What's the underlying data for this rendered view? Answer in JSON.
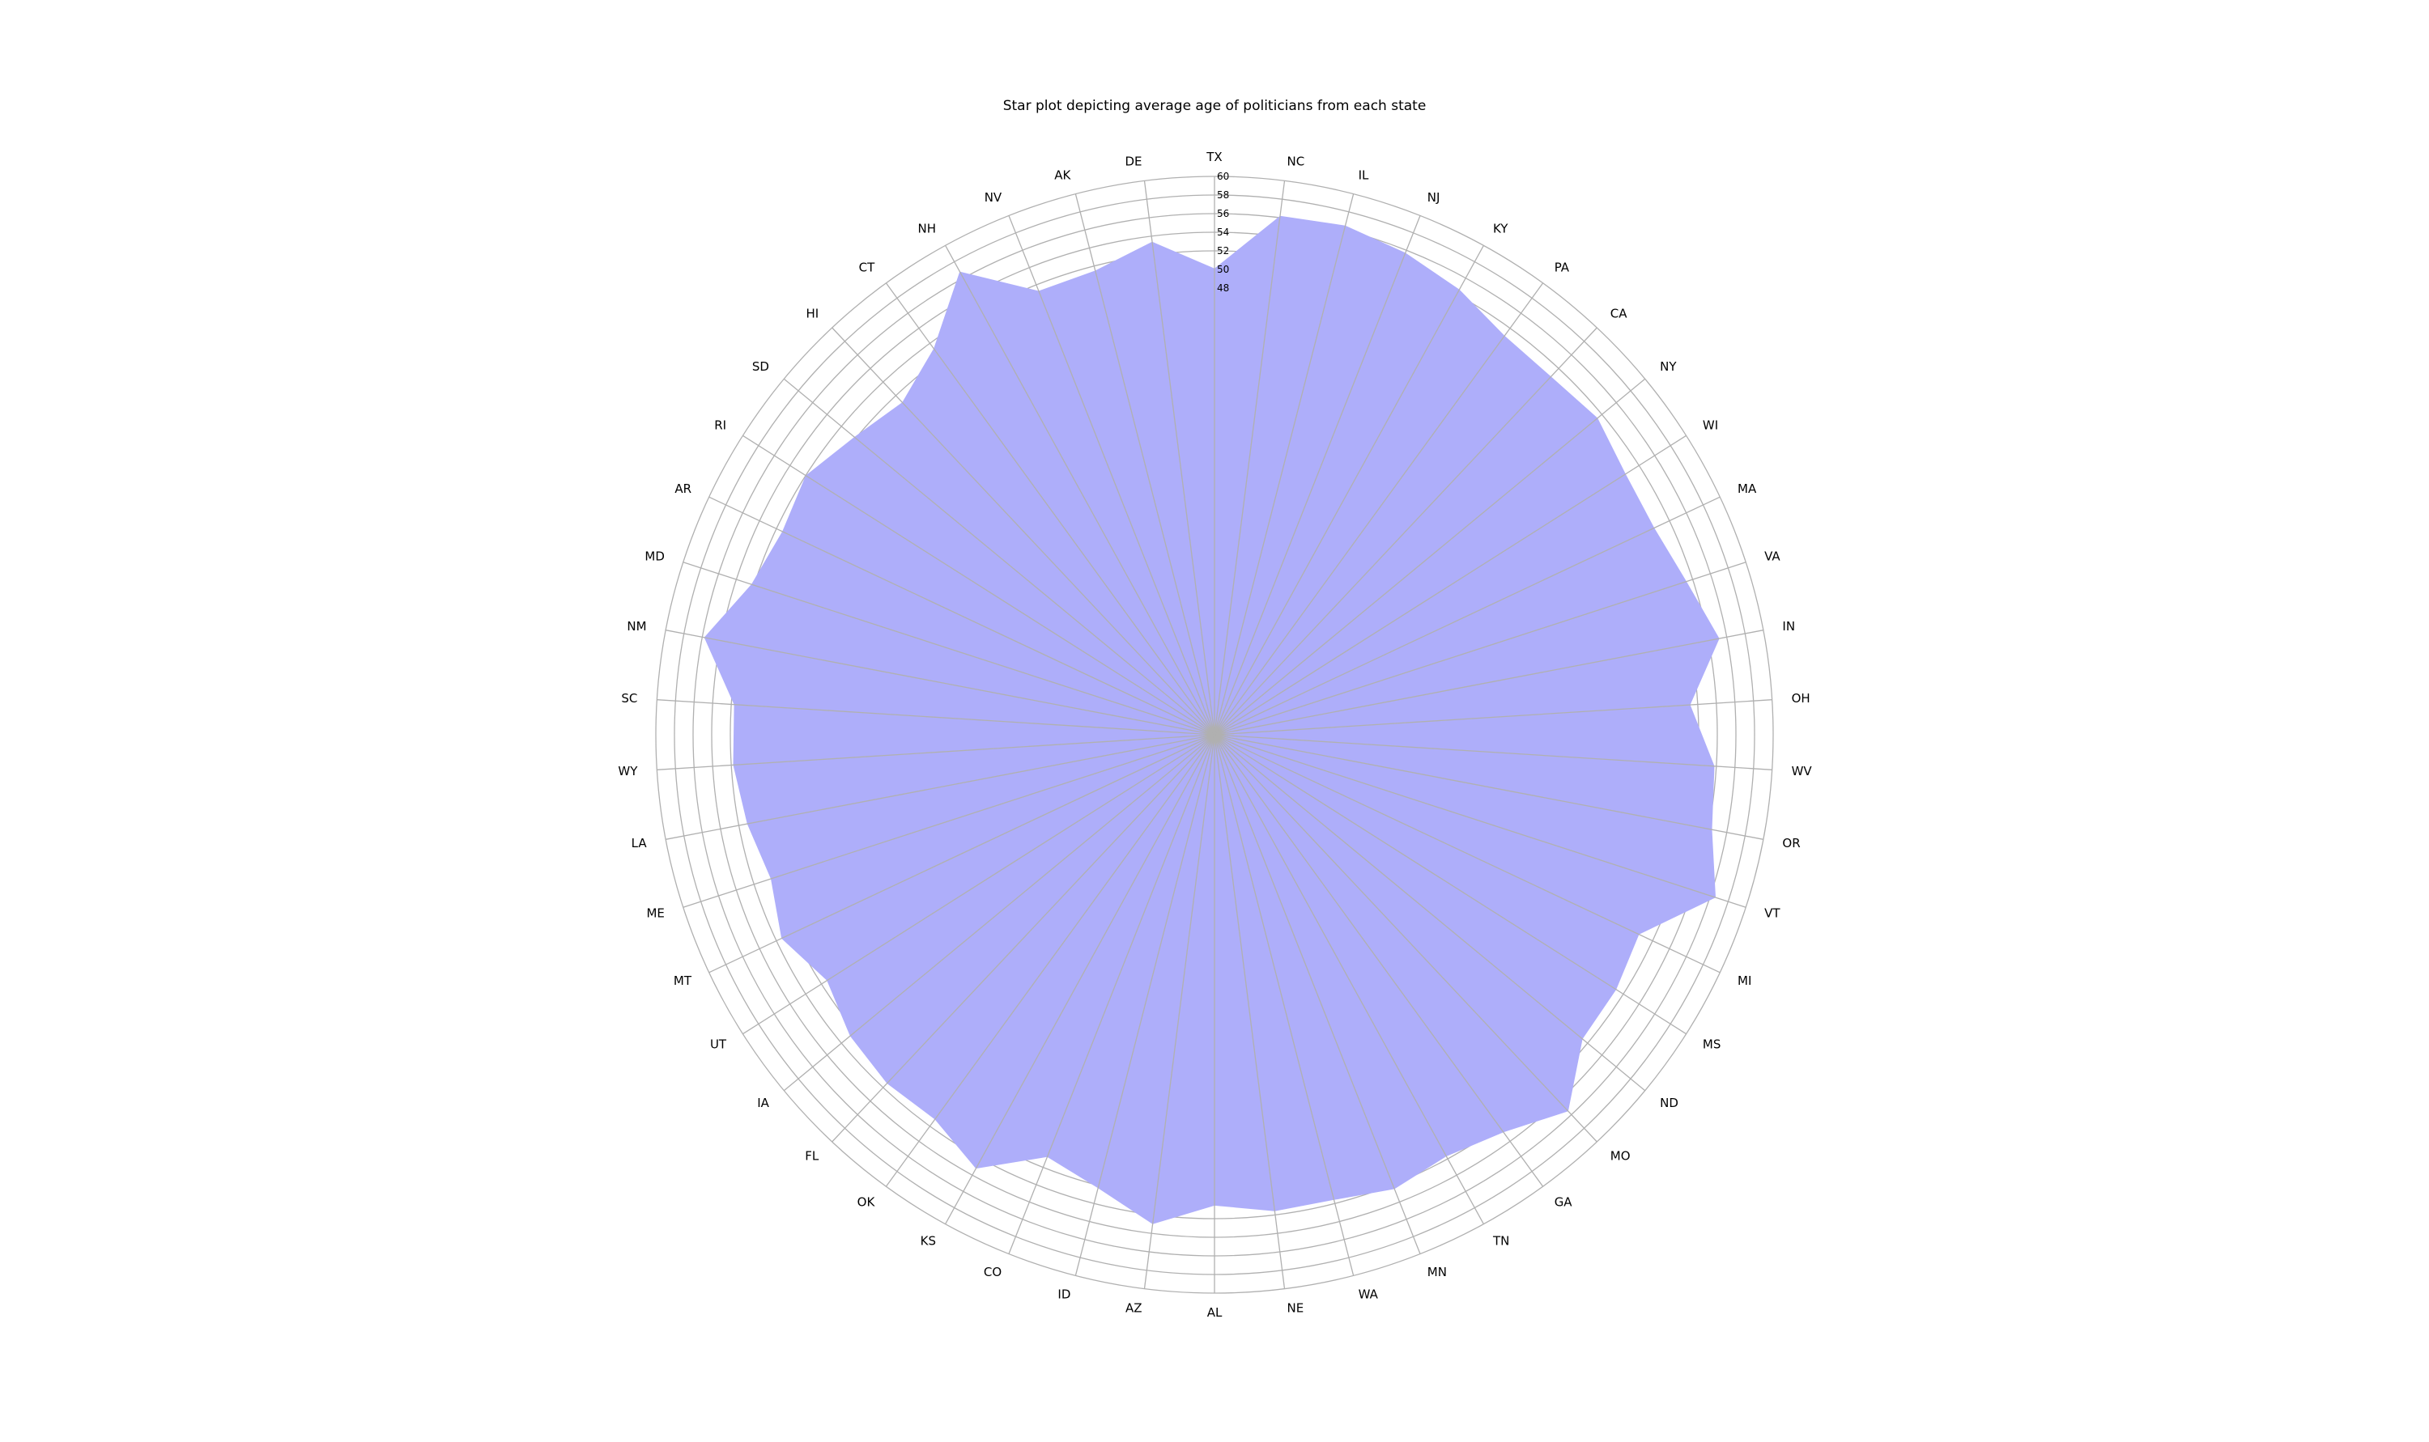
{
  "chart_data": {
    "type": "radar",
    "title": "Star plot depicting average age of politicians from each state",
    "categories": [
      "TX",
      "NC",
      "IL",
      "NJ",
      "KY",
      "PA",
      "CA",
      "NY",
      "WI",
      "MA",
      "VA",
      "IN",
      "OH",
      "WV",
      "OR",
      "VT",
      "MI",
      "MS",
      "ND",
      "MO",
      "GA",
      "TN",
      "MN",
      "WA",
      "NE",
      "AL",
      "AZ",
      "ID",
      "CO",
      "KS",
      "OK",
      "FL",
      "IA",
      "UT",
      "MT",
      "ME",
      "LA",
      "WY",
      "SC",
      "NM",
      "MD",
      "AR",
      "RI",
      "SD",
      "HI",
      "CT",
      "NH",
      "NV",
      "AK",
      "DE"
    ],
    "series": [
      {
        "values": [
          50.1,
          56.2,
          56.5,
          55.7,
          54.6,
          53.0,
          52.8,
          53.4,
          52.3,
          52.2,
          53.3,
          55.2,
          51.2,
          53.8,
          54.4,
          56.6,
          50.4,
          51.1,
          51.3,
          55.5,
          52.8,
          51.7,
          52.5,
          51.6,
          51.6,
          50.6,
          53.0,
          50.3,
          48.8,
          53.2,
          51.1,
          51.4,
          50.8,
          49.3,
          51.4,
          50.1,
          51.1,
          51.8,
          51.7,
          55.8,
          52.3,
          51.3,
          52.0,
          50.2,
          49.0,
          51.3,
          56.8,
          51.3,
          51.5,
          53.4
        ]
      }
    ],
    "rlim": [
      0,
      60
    ],
    "r_ticks": [
      "48",
      "50",
      "52",
      "54",
      "56",
      "58",
      "60"
    ],
    "grid": true,
    "fill_color": "#aeaefa",
    "grid_color": "#b0b0b0"
  }
}
